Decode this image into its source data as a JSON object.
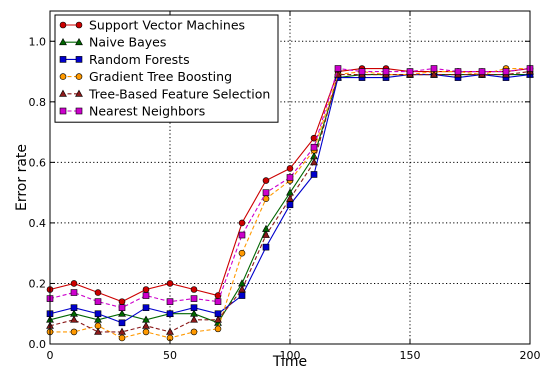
{
  "chart_data": {
    "type": "line",
    "xlabel": "Time",
    "ylabel": "Error rate",
    "xlim": [
      0,
      200
    ],
    "ylim": [
      0.0,
      1.1
    ],
    "xticks": [
      0,
      50,
      100,
      150,
      200
    ],
    "yticks": [
      0.0,
      0.2,
      0.4,
      0.6,
      0.8,
      1.0
    ],
    "xtick_labels": [
      "0",
      "50",
      "100",
      "150",
      "200"
    ],
    "ytick_labels": [
      "0.0",
      "0.2",
      "0.4",
      "0.6",
      "0.8",
      "1.0"
    ],
    "grid": true,
    "legend_position": "upper-left",
    "x": [
      0,
      10,
      20,
      30,
      40,
      50,
      60,
      70,
      80,
      90,
      100,
      110,
      120,
      130,
      140,
      150,
      160,
      170,
      180,
      190,
      200
    ],
    "series": [
      {
        "name": "Support Vector Machines",
        "color": "#cc0000",
        "marker": "circle",
        "dash": "solid",
        "values": [
          0.18,
          0.2,
          0.17,
          0.14,
          0.18,
          0.2,
          0.18,
          0.16,
          0.4,
          0.54,
          0.58,
          0.68,
          0.9,
          0.91,
          0.91,
          0.9,
          0.9,
          0.9,
          0.9,
          0.9,
          0.91
        ]
      },
      {
        "name": "Naive Bayes",
        "color": "#006600",
        "marker": "triangle",
        "dash": "solid",
        "values": [
          0.08,
          0.1,
          0.08,
          0.1,
          0.08,
          0.1,
          0.1,
          0.07,
          0.2,
          0.38,
          0.5,
          0.62,
          0.88,
          0.89,
          0.89,
          0.89,
          0.89,
          0.89,
          0.89,
          0.89,
          0.89
        ]
      },
      {
        "name": "Random Forests",
        "color": "#0000cc",
        "marker": "square",
        "dash": "solid",
        "values": [
          0.1,
          0.12,
          0.1,
          0.07,
          0.12,
          0.1,
          0.12,
          0.1,
          0.16,
          0.32,
          0.46,
          0.56,
          0.88,
          0.88,
          0.88,
          0.89,
          0.89,
          0.88,
          0.89,
          0.88,
          0.89
        ]
      },
      {
        "name": "Gradient Tree Boosting",
        "color": "#ff9900",
        "marker": "circle",
        "dash": "dashed",
        "values": [
          0.04,
          0.04,
          0.06,
          0.02,
          0.04,
          0.02,
          0.04,
          0.05,
          0.3,
          0.48,
          0.54,
          0.64,
          0.89,
          0.9,
          0.89,
          0.89,
          0.9,
          0.9,
          0.89,
          0.91,
          0.91
        ]
      },
      {
        "name": "Tree-Based Feature Selection",
        "color": "#8b1a1a",
        "marker": "triangle",
        "dash": "dashed",
        "values": [
          0.06,
          0.08,
          0.04,
          0.04,
          0.06,
          0.04,
          0.08,
          0.08,
          0.18,
          0.36,
          0.48,
          0.6,
          0.89,
          0.89,
          0.89,
          0.89,
          0.89,
          0.89,
          0.89,
          0.89,
          0.9
        ]
      },
      {
        "name": "Nearest Neighbors",
        "color": "#cc00cc",
        "marker": "square",
        "dash": "dashed",
        "values": [
          0.15,
          0.17,
          0.14,
          0.12,
          0.16,
          0.14,
          0.15,
          0.14,
          0.36,
          0.5,
          0.55,
          0.65,
          0.91,
          0.9,
          0.9,
          0.9,
          0.91,
          0.9,
          0.9,
          0.9,
          0.91
        ]
      }
    ]
  }
}
